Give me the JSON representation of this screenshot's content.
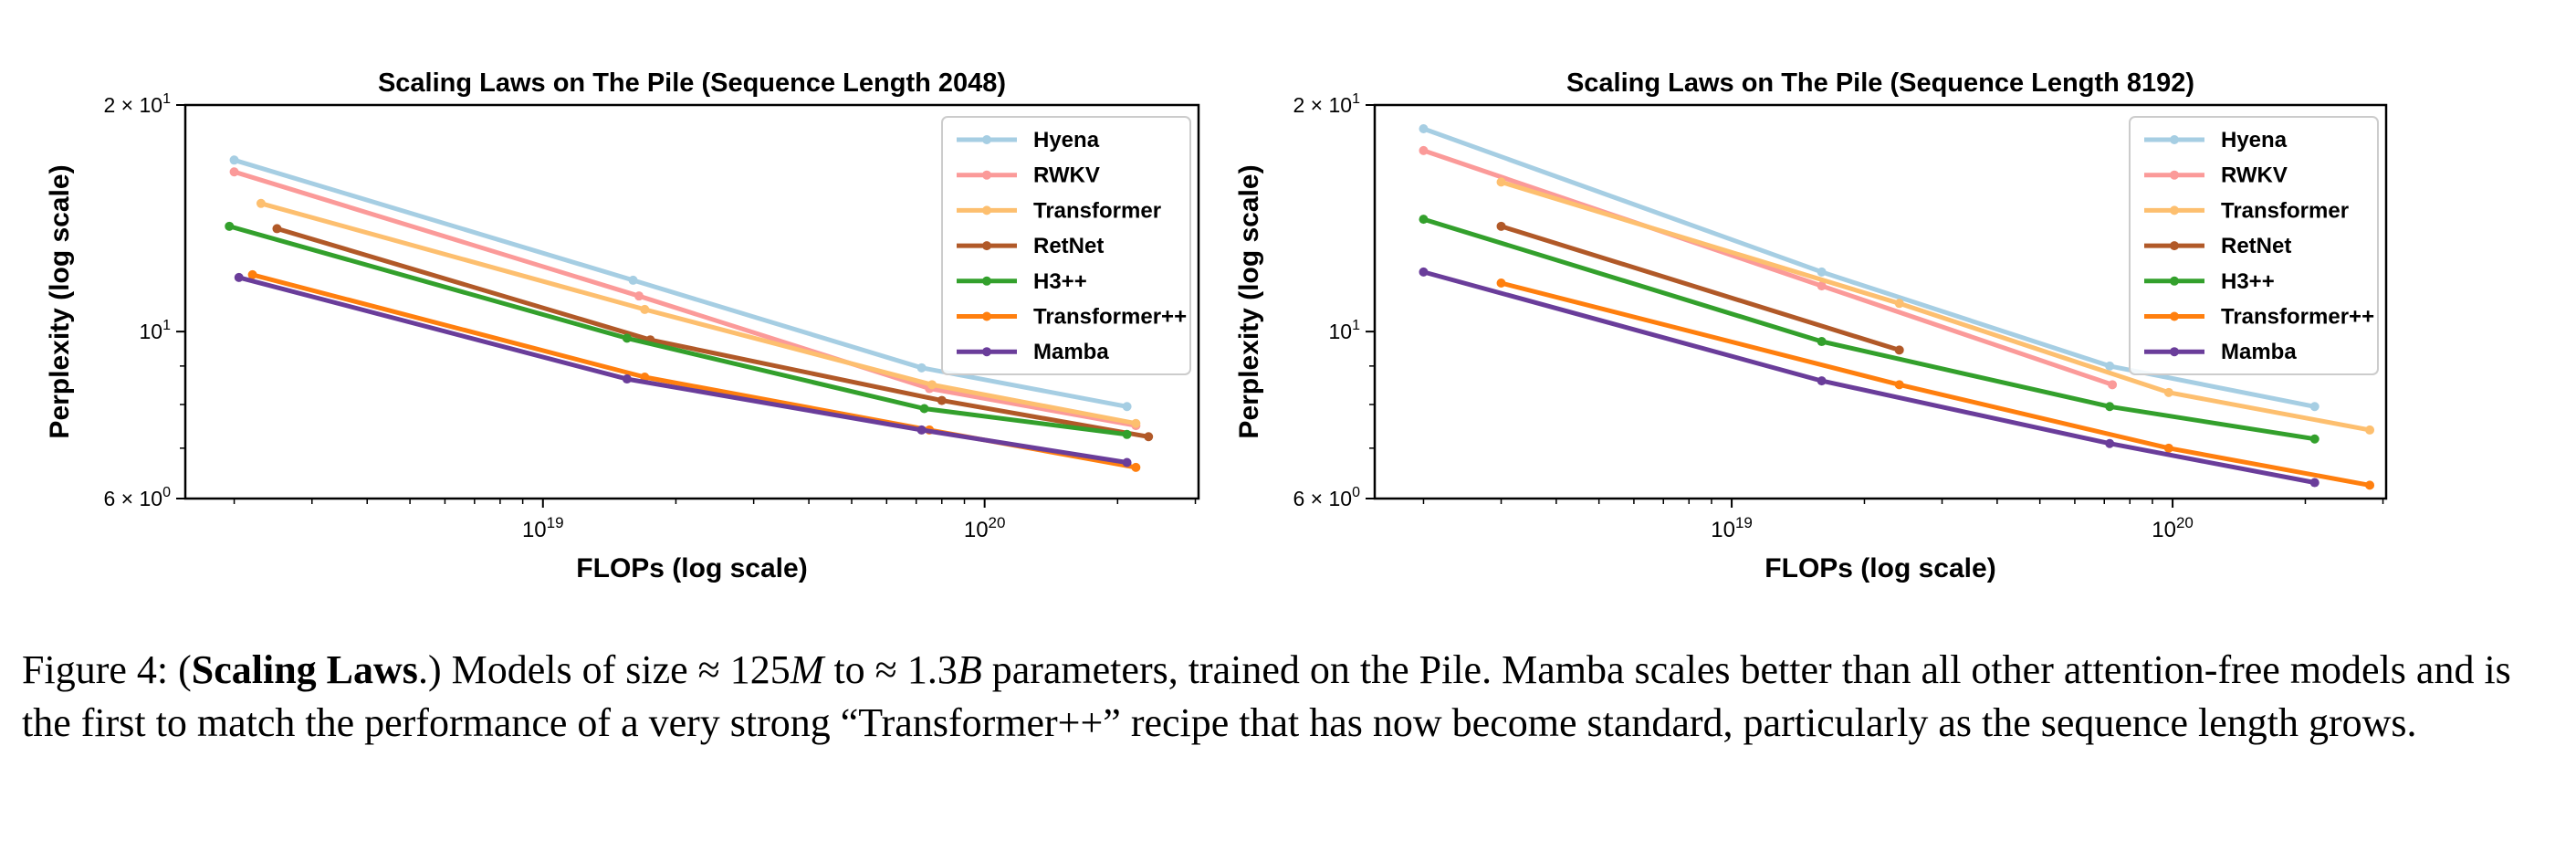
{
  "chart_data": [
    {
      "type": "line",
      "title": "Scaling Laws on The Pile (Sequence Length 2048)",
      "xlabel": "FLOPs (log scale)",
      "ylabel": "Perplexity (log scale)",
      "xscale": "log",
      "yscale": "log",
      "xlim": [
        1.55e+18,
        3.05e+20
      ],
      "ylim": [
        6,
        20
      ],
      "xticks": [
        {
          "v": 1e+19,
          "b": "10",
          "e": "19"
        },
        {
          "v": 1e+20,
          "b": "10",
          "e": "20"
        }
      ],
      "yticks": [
        {
          "v": 20,
          "label": "2 × 10",
          "e": "1"
        },
        {
          "v": 10,
          "label": "10",
          "e": "1"
        },
        {
          "v": 6,
          "label": "6 × 10",
          "e": "0"
        }
      ],
      "grid": false,
      "legend_position": "top-right",
      "series": [
        {
          "name": "Hyena",
          "color": "#a6cee3",
          "x": [
            2e+18,
            1.6e+19,
            7.2e+19,
            2.1e+20
          ],
          "y": [
            16.9,
            11.7,
            8.95,
            7.95
          ]
        },
        {
          "name": "RWKV",
          "color": "#fb9a99",
          "x": [
            2e+18,
            1.65e+19,
            7.5e+19,
            2.2e+20
          ],
          "y": [
            16.3,
            11.15,
            8.4,
            7.5
          ]
        },
        {
          "name": "Transformer",
          "color": "#fdbf6f",
          "x": [
            2.3e+18,
            1.7e+19,
            7.6e+19,
            2.2e+20
          ],
          "y": [
            14.8,
            10.7,
            8.5,
            7.55
          ]
        },
        {
          "name": "RetNet",
          "color": "#b15928",
          "x": [
            2.5e+18,
            1.75e+19,
            8e+19,
            2.35e+20
          ],
          "y": [
            13.7,
            9.75,
            8.1,
            7.25
          ]
        },
        {
          "name": "H3++",
          "color": "#33a02c",
          "x": [
            1.95e+18,
            1.55e+19,
            7.3e+19,
            2.1e+20
          ],
          "y": [
            13.8,
            9.8,
            7.9,
            7.3
          ]
        },
        {
          "name": "Transformer++",
          "color": "#ff7f0e",
          "x": [
            2.2e+18,
            1.7e+19,
            7.5e+19,
            2.2e+20
          ],
          "y": [
            11.9,
            8.7,
            7.4,
            6.6
          ]
        },
        {
          "name": "Mamba",
          "color": "#6a3d9a",
          "x": [
            2.05e+18,
            1.55e+19,
            7.2e+19,
            2.1e+20
          ],
          "y": [
            11.8,
            8.65,
            7.4,
            6.7
          ]
        }
      ]
    },
    {
      "type": "line",
      "title": "Scaling Laws on The Pile (Sequence Length 8192)",
      "xlabel": "FLOPs (log scale)",
      "ylabel": "Perplexity (log scale)",
      "xscale": "log",
      "yscale": "log",
      "xlim": [
        1.55e+18,
        3.05e+20
      ],
      "ylim": [
        6,
        20
      ],
      "xticks": [
        {
          "v": 1e+19,
          "b": "10",
          "e": "19"
        },
        {
          "v": 1e+20,
          "b": "10",
          "e": "20"
        }
      ],
      "yticks": [
        {
          "v": 20,
          "label": "2 × 10",
          "e": "1"
        },
        {
          "v": 10,
          "label": "10",
          "e": "1"
        },
        {
          "v": 6,
          "label": "6 × 10",
          "e": "0"
        }
      ],
      "grid": false,
      "legend_position": "top-right",
      "series": [
        {
          "name": "Hyena",
          "color": "#a6cee3",
          "x": [
            2e+18,
            1.6e+19,
            7.2e+19,
            2.1e+20
          ],
          "y": [
            18.6,
            12.0,
            9.0,
            7.95
          ]
        },
        {
          "name": "RWKV",
          "color": "#fb9a99",
          "x": [
            2e+18,
            1.6e+19,
            7.3e+19
          ],
          "y": [
            17.4,
            11.5,
            8.5
          ]
        },
        {
          "name": "Transformer",
          "color": "#fdbf6f",
          "x": [
            3e+18,
            2.4e+19,
            9.8e+19,
            2.8e+20
          ],
          "y": [
            15.8,
            10.9,
            8.3,
            7.4
          ]
        },
        {
          "name": "RetNet",
          "color": "#b15928",
          "x": [
            3e+18,
            2.4e+19
          ],
          "y": [
            13.8,
            9.45
          ]
        },
        {
          "name": "H3++",
          "color": "#33a02c",
          "x": [
            2e+18,
            1.6e+19,
            7.2e+19,
            2.1e+20
          ],
          "y": [
            14.1,
            9.7,
            7.95,
            7.2
          ]
        },
        {
          "name": "Transformer++",
          "color": "#ff7f0e",
          "x": [
            3e+18,
            2.4e+19,
            9.8e+19,
            2.8e+20
          ],
          "y": [
            11.6,
            8.5,
            7.0,
            6.25
          ]
        },
        {
          "name": "Mamba",
          "color": "#6a3d9a",
          "x": [
            2e+18,
            1.6e+19,
            7.2e+19,
            2.1e+20
          ],
          "y": [
            12.0,
            8.6,
            7.1,
            6.3
          ]
        }
      ]
    }
  ],
  "caption": {
    "prefix": "Figure 4: (",
    "bold": "Scaling Laws",
    "part1": ".) Models of size ≈ 125",
    "m": "M",
    "part2": " to ≈ 1.3",
    "b": "B",
    "rest": " parameters, trained on the Pile. Mamba scales better than all other attention-free models and is the first to match the performance of a very strong “Transformer++” recipe that has now become standard, particularly as the sequence length grows."
  }
}
